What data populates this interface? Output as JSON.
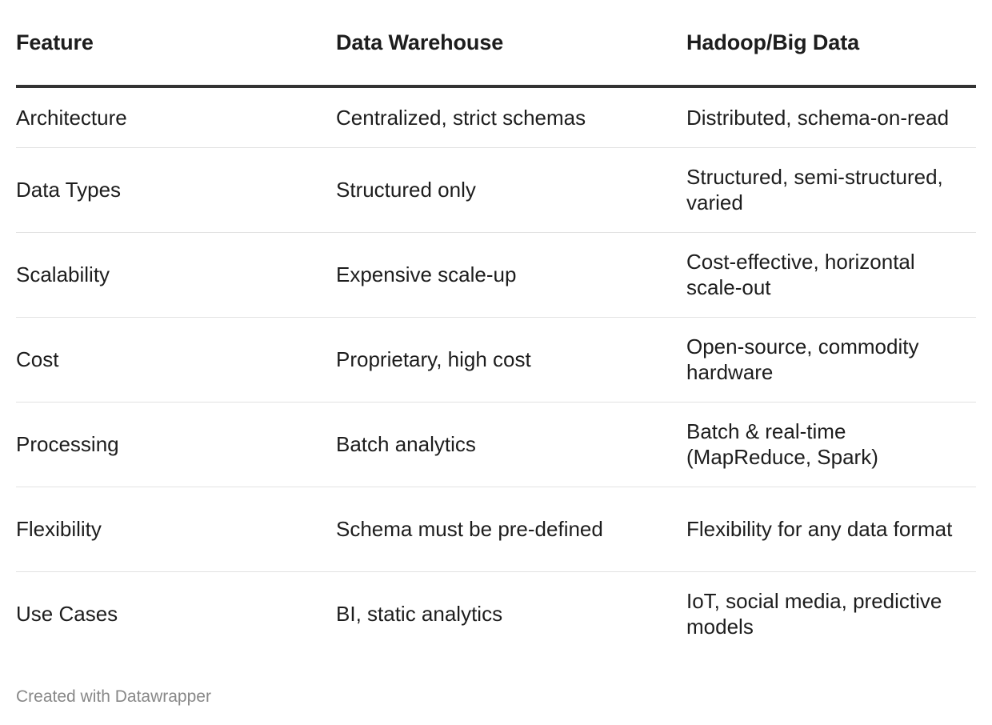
{
  "chart_data": {
    "type": "table",
    "columns": [
      "Feature",
      "Data Warehouse",
      "Hadoop/Big Data"
    ],
    "rows": [
      [
        "Architecture",
        "Centralized, strict schemas",
        "Distributed, schema-on-read"
      ],
      [
        "Data Types",
        "Structured only",
        "Structured, semi-structured, varied"
      ],
      [
        "Scalability",
        "Expensive scale-up",
        "Cost-effective, horizontal scale-out"
      ],
      [
        "Cost",
        "Proprietary, high cost",
        "Open-source, commodity hardware"
      ],
      [
        "Processing",
        "Batch analytics",
        "Batch & real-time (MapReduce, Spark)"
      ],
      [
        "Flexibility",
        "Schema must be pre-defined",
        "Flexibility for any data format"
      ],
      [
        "Use Cases",
        "BI, static analytics",
        "IoT, social media, predictive models"
      ]
    ]
  },
  "footer": {
    "credit": "Created with Datawrapper"
  },
  "colors": {
    "text": "#1d1d1d",
    "header_rule": "#333333",
    "row_rule": "#e2e2e2",
    "footer_text": "#888888"
  }
}
